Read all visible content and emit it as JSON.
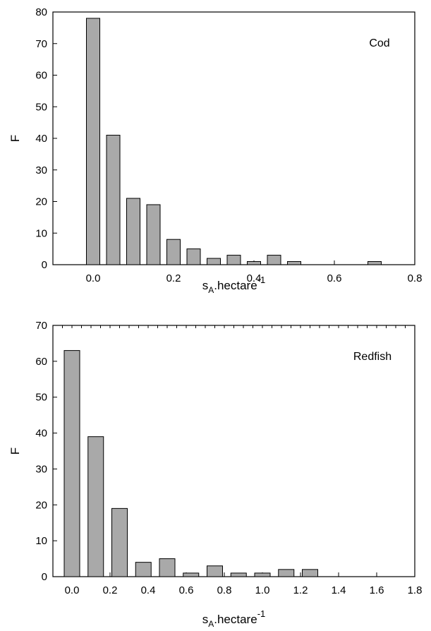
{
  "chart_data": [
    {
      "type": "bar",
      "annotation": "Cod",
      "xlabel": {
        "base": "s",
        "sub": "A",
        "mid": ".hectare",
        "sup": "-1"
      },
      "ylabel": "F",
      "xlim": [
        -0.1,
        0.8
      ],
      "ylim": [
        0,
        80
      ],
      "xticks": [
        "0.0",
        "0.2",
        "0.4",
        "0.6",
        "0.8"
      ],
      "xtick_values": [
        0.0,
        0.2,
        0.4,
        0.6,
        0.8
      ],
      "yticks": [
        "0",
        "10",
        "20",
        "30",
        "40",
        "50",
        "60",
        "70",
        "80"
      ],
      "ytick_values": [
        0,
        10,
        20,
        30,
        40,
        50,
        60,
        70,
        80
      ],
      "bin_width": 0.05,
      "x": [
        0.0,
        0.05,
        0.1,
        0.15,
        0.2,
        0.25,
        0.3,
        0.35,
        0.4,
        0.45,
        0.5,
        0.7
      ],
      "values": [
        78,
        41,
        21,
        19,
        8,
        5,
        2,
        3,
        1,
        3,
        1,
        1
      ],
      "grid": false,
      "color": "#a9a9a9"
    },
    {
      "type": "bar",
      "annotation": "Redfish",
      "xlabel": {
        "base": "s",
        "sub": "A",
        "mid": ".hectare",
        "sup": "-1"
      },
      "ylabel": "F",
      "xlim": [
        -0.1,
        1.8
      ],
      "ylim": [
        0,
        70
      ],
      "xticks": [
        "0.0",
        "0.2",
        "0.4",
        "0.6",
        "0.8",
        "1.0",
        "1.2",
        "1.4",
        "1.6",
        "1.8"
      ],
      "xtick_values": [
        0.0,
        0.2,
        0.4,
        0.6,
        0.8,
        1.0,
        1.2,
        1.4,
        1.6,
        1.8
      ],
      "yticks": [
        "0",
        "10",
        "20",
        "30",
        "40",
        "50",
        "60",
        "70"
      ],
      "ytick_values": [
        0,
        10,
        20,
        30,
        40,
        50,
        60,
        70
      ],
      "bin_width": 0.125,
      "x": [
        0.0,
        0.125,
        0.25,
        0.375,
        0.5,
        0.625,
        0.75,
        0.875,
        1.0,
        1.125,
        1.25
      ],
      "values": [
        63,
        39,
        19,
        4,
        5,
        1,
        3,
        1,
        1,
        2,
        2
      ],
      "grid": false,
      "color": "#a9a9a9"
    }
  ]
}
